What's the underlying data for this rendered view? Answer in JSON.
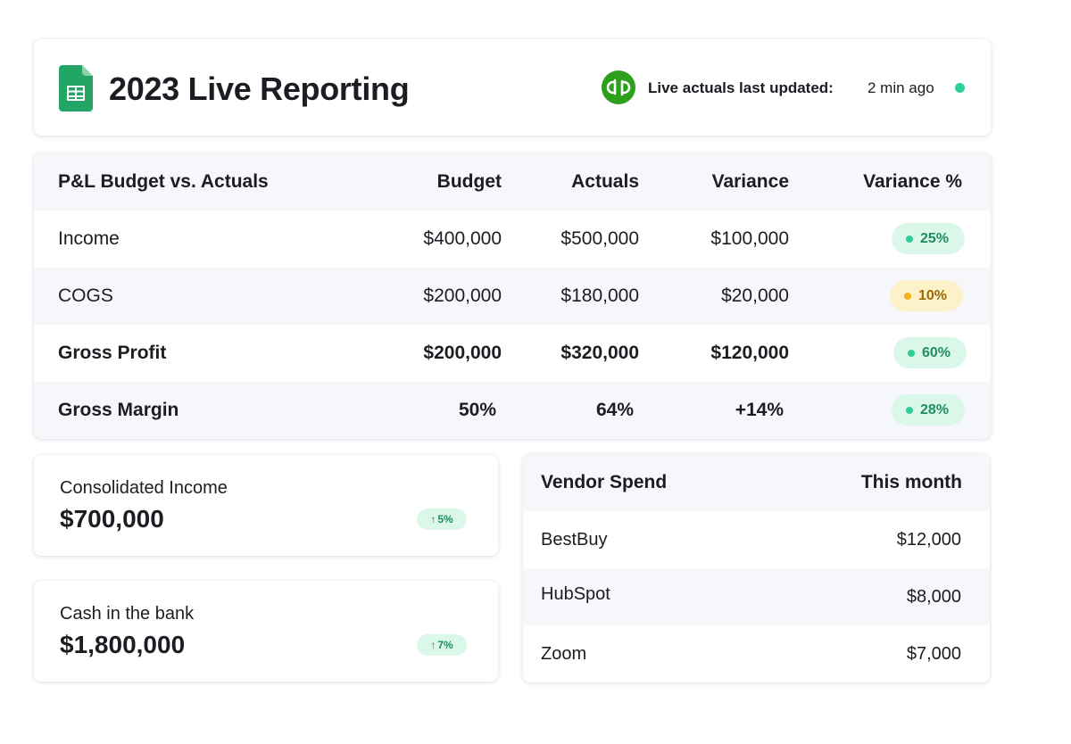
{
  "header": {
    "title": "2023 Live Reporting",
    "update_label": "Live actuals last updated:",
    "update_value": "2 min ago",
    "sheets_icon": "google-sheets-icon",
    "qb_icon": "quickbooks-icon",
    "colors": {
      "live_dot": "#2fcf9a",
      "sheets_green": "#23a566",
      "qb_green": "#2ca01c"
    }
  },
  "pl_table": {
    "headers": {
      "label": "P&L Budget vs. Actuals",
      "budget": "Budget",
      "actuals": "Actuals",
      "variance": "Variance",
      "variance_pct": "Variance %"
    },
    "rows": [
      {
        "label": "Income",
        "budget": "$400,000",
        "actuals": "$500,000",
        "variance": "$100,000",
        "variance_pct": "25%",
        "status": "green"
      },
      {
        "label": "COGS",
        "budget": "$200,000",
        "actuals": "$180,000",
        "variance": "$20,000",
        "variance_pct": "10%",
        "status": "yellow"
      },
      {
        "label": "Gross Profit",
        "budget": "$200,000",
        "actuals": "$320,000",
        "variance": "$120,000",
        "variance_pct": "60%",
        "status": "green"
      },
      {
        "label": "Gross Margin",
        "budget": "50%",
        "actuals": "64%",
        "variance": "+14%",
        "variance_pct": "28%",
        "status": "green"
      }
    ]
  },
  "kpis": {
    "income": {
      "label": "Consolidated Income",
      "value": "$700,000",
      "trend_arrow": "↑",
      "trend": "5%"
    },
    "cash": {
      "label": "Cash in the bank",
      "value": "$1,800,000",
      "trend_arrow": "↑",
      "trend": "7%"
    }
  },
  "vendor": {
    "headers": {
      "name": "Vendor Spend",
      "amount": "This month"
    },
    "rows": [
      {
        "name": "BestBuy",
        "amount": "$12,000"
      },
      {
        "name": "HubSpot",
        "amount": "$8,000"
      },
      {
        "name": "Zoom",
        "amount": "$7,000"
      }
    ]
  }
}
